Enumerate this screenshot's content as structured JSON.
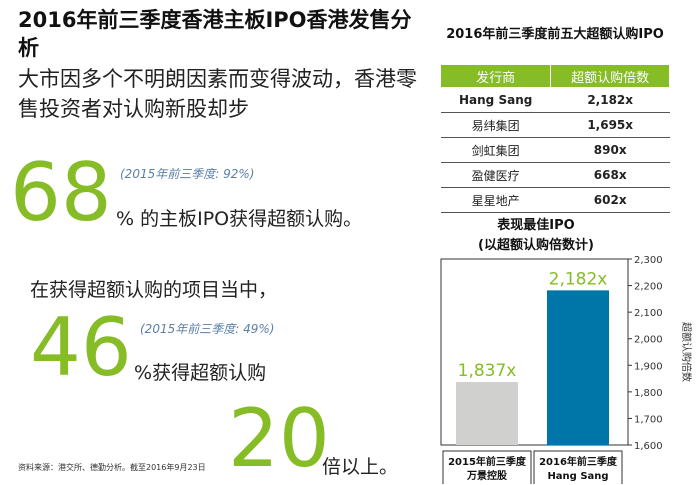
{
  "header": {
    "title": "2016年前三季度香港主板IPO香港发售分析",
    "subtitle": "大市因多个不明朗因素而变得波动，香港零售投资者对认购新股却步"
  },
  "stats": [
    {
      "value": "68",
      "unit": "%",
      "text": " 的主板IPO获得超额认购。",
      "prev": "(2015年前三季度: 92%)"
    },
    {
      "value": "46",
      "unit": "%",
      "text": "获得超额认购",
      "prev": "(2015年前三季度: 49%)",
      "intro": "在获得超额认购的项目当中，"
    },
    {
      "value": "20",
      "text": "倍以上。"
    }
  ],
  "source_note": "资料来源：港交所、德勤分析。截至2016年9月23日",
  "table": {
    "title": "2016年前三季度前五大超额认购IPO",
    "headers": [
      "发行商",
      "超额认购倍数"
    ],
    "rows": [
      [
        "Hang Sang",
        "2,182x"
      ],
      [
        "易纬集团",
        "1,695x"
      ],
      [
        "剑虹集团",
        "890x"
      ],
      [
        "盈健医疗",
        "668x"
      ],
      [
        "星星地产",
        "602x"
      ]
    ]
  },
  "chart_data": {
    "type": "bar",
    "title": "表现最佳IPO\n(以超额认购倍数计)",
    "title_line1": "表现最佳IPO",
    "title_line2": "(以超额认购倍数计)",
    "categories": [
      "2015年前三季度\n万景控股",
      "2016年前三季度\nHang Sang"
    ],
    "category_labels": [
      [
        "2015年前三季度",
        "万景控股"
      ],
      [
        "2016年前三季度",
        "Hang Sang"
      ]
    ],
    "values": [
      1837,
      2182
    ],
    "data_labels": [
      "1,837x",
      "2,182x"
    ],
    "ylabel": "超额认购倍数",
    "ylim": [
      1600,
      2300
    ],
    "yticks": [
      "1,600",
      "1,700",
      "1,800",
      "1,900",
      "2,000",
      "2,100",
      "2,200",
      "2,300"
    ],
    "colors": [
      "#D0D0CE",
      "#0076A8"
    ],
    "label_colors": [
      "#86BC25",
      "#86BC25"
    ]
  }
}
